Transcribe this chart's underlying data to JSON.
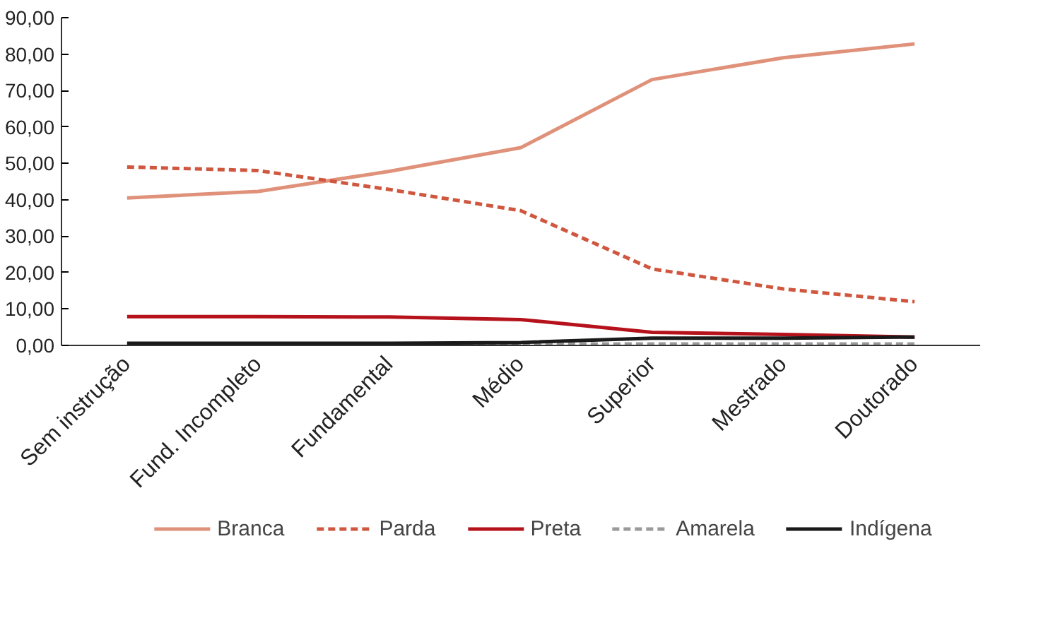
{
  "chart_data": {
    "type": "line",
    "categories": [
      "Sem instrução",
      "Fund. Incompleto",
      "Fundamental",
      "Médio",
      "Superior",
      "Mestrado",
      "Doutorado"
    ],
    "series": [
      {
        "name": "Branca",
        "color": "#e0917a",
        "line_style": "solid",
        "values": [
          40.5,
          42.3,
          47.8,
          54.3,
          73.0,
          79.0,
          82.8
        ]
      },
      {
        "name": "Parda",
        "color": "#d0573f",
        "line_style": "dashed",
        "values": [
          49.0,
          48.0,
          42.8,
          37.0,
          21.0,
          15.5,
          12.0
        ]
      },
      {
        "name": "Preta",
        "color": "#b5121b",
        "line_style": "solid",
        "values": [
          7.9,
          7.9,
          7.8,
          7.1,
          3.6,
          3.0,
          2.3
        ]
      },
      {
        "name": "Amarela",
        "color": "#9a9a9a",
        "line_style": "dashed",
        "values": [
          0.5,
          0.5,
          0.5,
          0.4,
          0.4,
          0.4,
          0.4
        ]
      },
      {
        "name": "Indígena",
        "color": "#1a1a1a",
        "line_style": "solid",
        "values": [
          0.6,
          0.6,
          0.6,
          0.8,
          2.0,
          2.0,
          2.3
        ]
      }
    ],
    "ylim": [
      0,
      90
    ],
    "yticks": [
      {
        "value": 0,
        "label": "0,00"
      },
      {
        "value": 10,
        "label": "10,00"
      },
      {
        "value": 20,
        "label": "20,00"
      },
      {
        "value": 30,
        "label": "30,00"
      },
      {
        "value": 40,
        "label": "40,00"
      },
      {
        "value": 50,
        "label": "50,00"
      },
      {
        "value": 60,
        "label": "60,00"
      },
      {
        "value": 70,
        "label": "70,00"
      },
      {
        "value": 80,
        "label": "80,00"
      },
      {
        "value": 90,
        "label": "90,00"
      }
    ],
    "grid": false,
    "legend": "bottom",
    "marker": "none"
  }
}
